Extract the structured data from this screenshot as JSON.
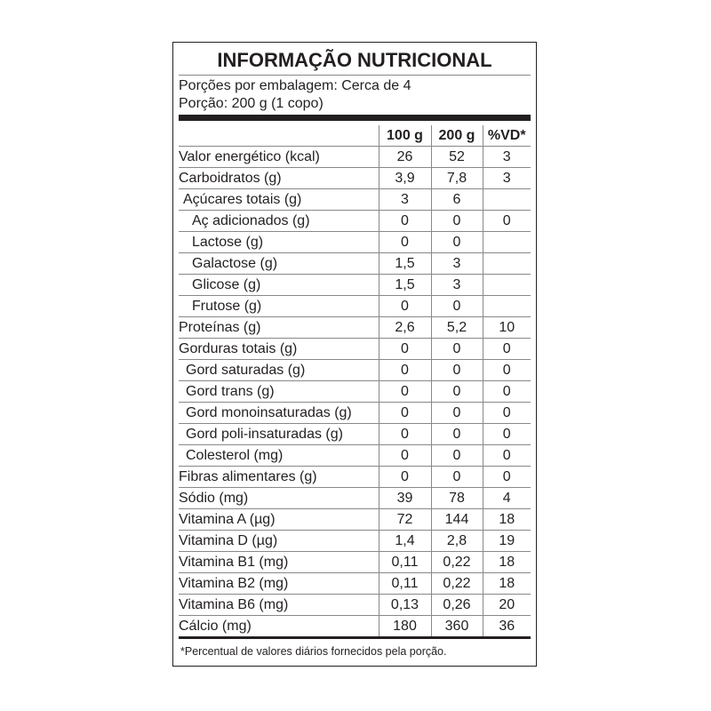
{
  "title": "INFORMAÇÃO NUTRICIONAL",
  "servings_per_package": "Porções por embalagem: Cerca de 4",
  "serving_size": "Porção: 200 g (1 copo)",
  "columns": [
    "",
    "100 g",
    "200 g",
    "%VD*"
  ],
  "rows": [
    {
      "name": "Valor energético (kcal)",
      "indent": 0,
      "v100": "26",
      "v200": "52",
      "vd": "3"
    },
    {
      "name": "Carboidratos (g)",
      "indent": 0,
      "v100": "3,9",
      "v200": "7,8",
      "vd": "3"
    },
    {
      "name": "Açúcares totais (g)",
      "indent": 1,
      "v100": "3",
      "v200": "6",
      "vd": ""
    },
    {
      "name": "Aç adicionados (g)",
      "indent": 2,
      "v100": "0",
      "v200": "0",
      "vd": "0"
    },
    {
      "name": "Lactose (g)",
      "indent": 2,
      "v100": "0",
      "v200": "0",
      "vd": ""
    },
    {
      "name": "Galactose (g)",
      "indent": 2,
      "v100": "1,5",
      "v200": "3",
      "vd": ""
    },
    {
      "name": "Glicose (g)",
      "indent": 2,
      "v100": "1,5",
      "v200": "3",
      "vd": ""
    },
    {
      "name": "Frutose (g)",
      "indent": 2,
      "v100": "0",
      "v200": "0",
      "vd": ""
    },
    {
      "name": "Proteínas (g)",
      "indent": 0,
      "v100": "2,6",
      "v200": "5,2",
      "vd": "10"
    },
    {
      "name": "Gorduras totais (g)",
      "indent": 0,
      "v100": "0",
      "v200": "0",
      "vd": "0"
    },
    {
      "name": "Gord saturadas (g)",
      "indent": 3,
      "v100": "0",
      "v200": "0",
      "vd": "0"
    },
    {
      "name": "Gord trans (g)",
      "indent": 3,
      "v100": "0",
      "v200": "0",
      "vd": "0"
    },
    {
      "name": "Gord monoinsaturadas (g)",
      "indent": 3,
      "v100": "0",
      "v200": "0",
      "vd": "0"
    },
    {
      "name": "Gord poli-insaturadas (g)",
      "indent": 3,
      "v100": "0",
      "v200": "0",
      "vd": "0"
    },
    {
      "name": "Colesterol (mg)",
      "indent": 3,
      "v100": "0",
      "v200": "0",
      "vd": "0"
    },
    {
      "name": "Fibras alimentares (g)",
      "indent": 0,
      "v100": "0",
      "v200": "0",
      "vd": "0"
    },
    {
      "name": "Sódio (mg)",
      "indent": 0,
      "v100": "39",
      "v200": "78",
      "vd": "4"
    },
    {
      "name": "Vitamina A (µg)",
      "indent": 0,
      "v100": "72",
      "v200": "144",
      "vd": "18"
    },
    {
      "name": "Vitamina D (µg)",
      "indent": 0,
      "v100": "1,4",
      "v200": "2,8",
      "vd": "19"
    },
    {
      "name": "Vitamina B1 (mg)",
      "indent": 0,
      "v100": "0,11",
      "v200": "0,22",
      "vd": "18"
    },
    {
      "name": "Vitamina B2 (mg)",
      "indent": 0,
      "v100": "0,11",
      "v200": "0,22",
      "vd": "18"
    },
    {
      "name": "Vitamina B6 (mg)",
      "indent": 0,
      "v100": "0,13",
      "v200": "0,26",
      "vd": "20"
    },
    {
      "name": "Cálcio (mg)",
      "indent": 0,
      "v100": "180",
      "v200": "360",
      "vd": "36"
    }
  ],
  "footnote": "*Percentual de valores diários fornecidos pela porção."
}
